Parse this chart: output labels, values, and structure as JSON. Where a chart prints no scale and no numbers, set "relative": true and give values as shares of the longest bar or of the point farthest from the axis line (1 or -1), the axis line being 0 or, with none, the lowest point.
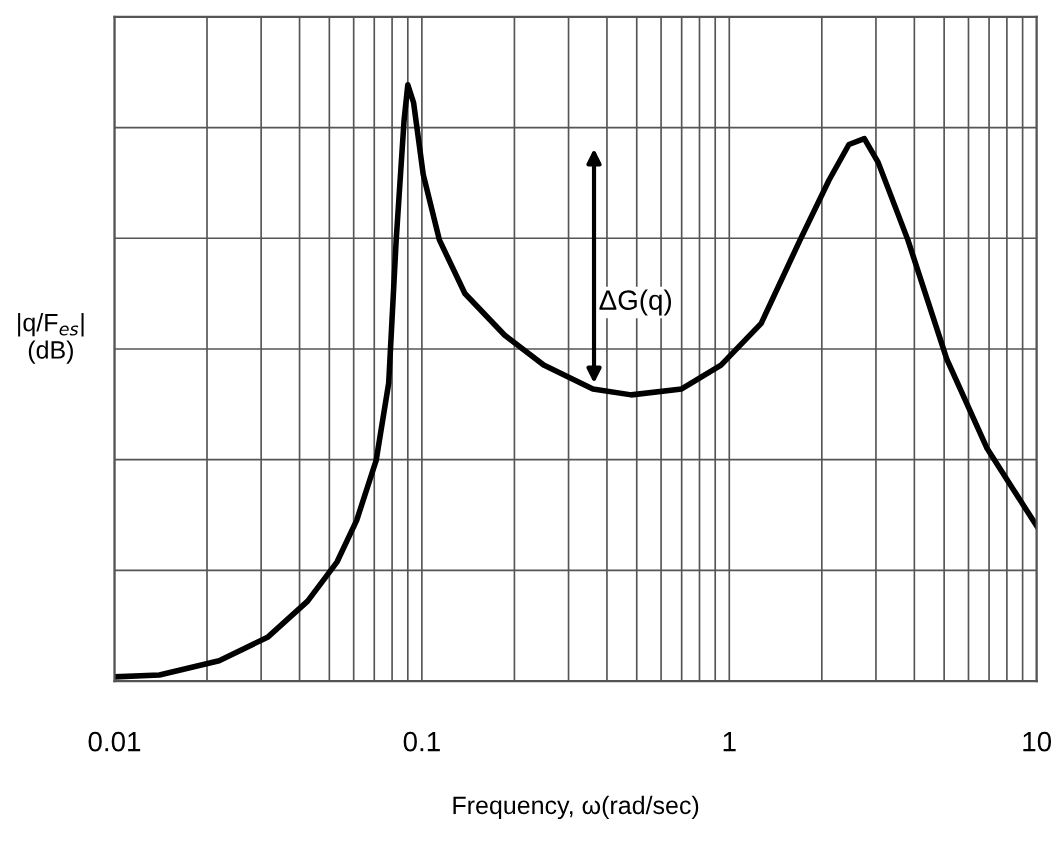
{
  "chart_data": {
    "type": "line",
    "relative": true,
    "log": "x",
    "xlabel": "Frequency, ω(rad/sec)",
    "ylabel": "|q/F$_{es}$|\n(dB)",
    "xlim": [
      0.01,
      10
    ],
    "xticks": [
      0.01,
      0.1,
      1,
      10
    ],
    "grid": true,
    "color": "#000000",
    "x": [
      0.01,
      0.014,
      0.0219,
      0.0316,
      0.0425,
      0.053,
      0.0614,
      0.071,
      0.078,
      0.0825,
      0.0875,
      0.09,
      0.094,
      0.101,
      0.114,
      0.138,
      0.186,
      0.249,
      0.36,
      0.48,
      0.7,
      0.94,
      1.27,
      1.7,
      2.11,
      2.45,
      2.75,
      3.05,
      3.81,
      5.1,
      6.9,
      10
    ],
    "values": [
      0.007,
      0.01,
      0.034,
      0.074,
      0.134,
      0.2,
      0.27,
      0.37,
      0.5,
      0.74,
      0.94,
      1.0,
      0.97,
      0.85,
      0.74,
      0.65,
      0.58,
      0.53,
      0.49,
      0.48,
      0.49,
      0.53,
      0.6,
      0.74,
      0.84,
      0.9,
      0.91,
      0.87,
      0.74,
      0.54,
      0.39,
      0.26
    ],
    "annotations": [
      "ΔG(q)"
    ]
  }
}
